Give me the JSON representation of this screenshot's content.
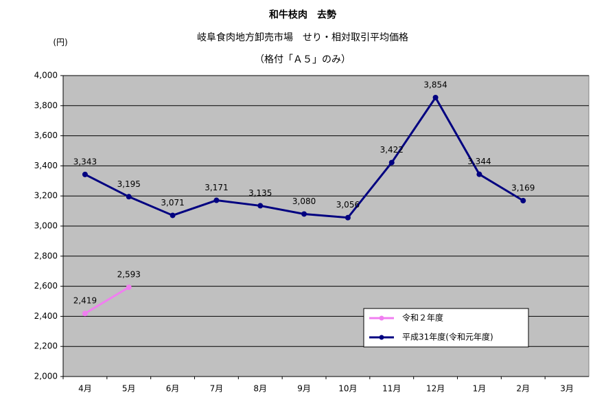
{
  "chart_data": {
    "type": "line",
    "title": "和牛枝肉　去勢",
    "subtitle": [
      "岐阜食肉地方卸売市場　せり・相対取引平均価格",
      "（格付「Ａ５」のみ）"
    ],
    "y_label": "(円)",
    "categories": [
      "4月",
      "5月",
      "6月",
      "7月",
      "8月",
      "9月",
      "10月",
      "11月",
      "12月",
      "1月",
      "2月",
      "3月"
    ],
    "series": [
      {
        "name": "令和２年度",
        "color": "#f07ef0",
        "values": [
          2419,
          2593,
          null,
          null,
          null,
          null,
          null,
          null,
          null,
          null,
          null,
          null
        ],
        "value_labels": [
          "2,419",
          "2,593",
          null,
          null,
          null,
          null,
          null,
          null,
          null,
          null,
          null,
          null
        ]
      },
      {
        "name": "平成31年度(令和元年度)",
        "color": "#000080",
        "values": [
          3343,
          3195,
          3071,
          3171,
          3135,
          3080,
          3056,
          3422,
          3854,
          3344,
          3169,
          null
        ],
        "value_labels": [
          "3,343",
          "3,195",
          "3,071",
          "3,171",
          "3,135",
          "3,080",
          "3,056",
          "3,422",
          "3,854",
          "3,344",
          "3,169",
          null
        ]
      }
    ],
    "ylim": [
      2000,
      4000
    ],
    "yticks": [
      {
        "value": 2000,
        "label": "2,000"
      },
      {
        "value": 2200,
        "label": "2,200"
      },
      {
        "value": 2400,
        "label": "2,400"
      },
      {
        "value": 2600,
        "label": "2,600"
      },
      {
        "value": 2800,
        "label": "2,800"
      },
      {
        "value": 3000,
        "label": "3,000"
      },
      {
        "value": 3200,
        "label": "3,200"
      },
      {
        "value": 3400,
        "label": "3,400"
      },
      {
        "value": 3600,
        "label": "3,600"
      },
      {
        "value": 3800,
        "label": "3,800"
      },
      {
        "value": 4000,
        "label": "4,000"
      }
    ],
    "grid": true,
    "plot_background": "#c0c0c0",
    "legend": "lower right"
  }
}
